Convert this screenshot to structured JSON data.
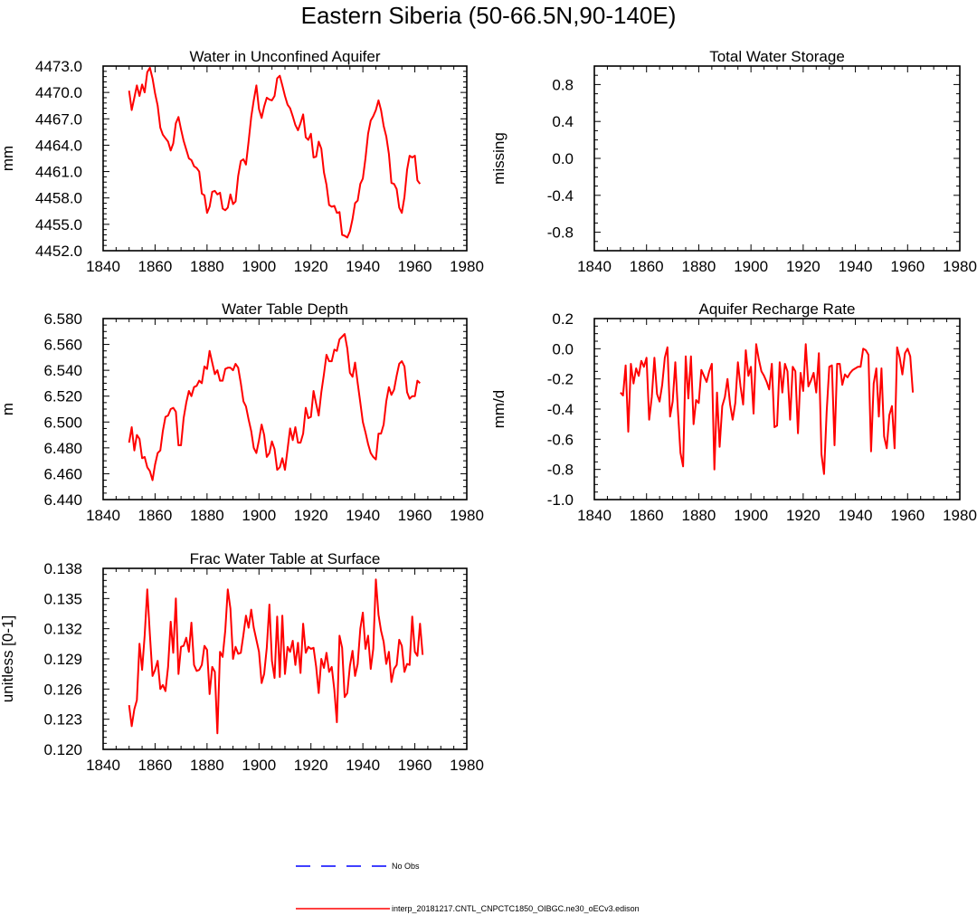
{
  "figure": {
    "title": "Eastern Siberia (50-66.5N,90-140E)",
    "legend": {
      "obs_label": "No Obs",
      "model_label": "interp_20181217.CNTL_CNPCTC1850_OIBGC.ne30_oECv3.edison",
      "obs_color": "#0000ff",
      "model_color": "#ff0000"
    }
  },
  "chart_data": [
    {
      "type": "line",
      "title": "Water in Unconfined Aquifer",
      "xlabel": "",
      "ylabel": "mm",
      "xlim": [
        1840,
        1980
      ],
      "ylim": [
        4452,
        4473
      ],
      "xticks": [
        1840,
        1860,
        1880,
        1900,
        1920,
        1940,
        1960,
        1980
      ],
      "xtick_labels": [
        "1840",
        "1860",
        "1880",
        "1900",
        "1920",
        "1940",
        "1960",
        "1980"
      ],
      "yticks": [
        4452,
        4455,
        4458,
        4461,
        4464,
        4467,
        4470,
        4473
      ],
      "ytick_labels": [
        "4452.0",
        "4455.0",
        "4458.0",
        "4461.0",
        "4464.0",
        "4467.0",
        "4470.0",
        "4473.0"
      ],
      "yminor": 5,
      "series": [
        {
          "name": "model",
          "color": "#ff0000",
          "x_start": 1850,
          "x_step": 1,
          "values": [
            4470.2,
            4468.0,
            4469.4,
            4470.8,
            4469.6,
            4470.9,
            4470.0,
            4472.3,
            4472.8,
            4471.6,
            4469.9,
            4468.5,
            4466.0,
            4465.2,
            4464.8,
            4464.4,
            4463.4,
            4464.2,
            4466.5,
            4467.2,
            4465.8,
            4464.5,
            4463.5,
            4462.5,
            4462.3,
            4461.6,
            4461.4,
            4461.0,
            4458.5,
            4458.3,
            4456.3,
            4457.0,
            4458.7,
            4458.8,
            4458.4,
            4458.6,
            4456.8,
            4456.6,
            4456.9,
            4458.4,
            4457.3,
            4457.6,
            4460.5,
            4462.2,
            4462.4,
            4461.8,
            4464.4,
            4467.2,
            4469.1,
            4470.8,
            4468.1,
            4467.1,
            4468.4,
            4469.4,
            4469.2,
            4469.1,
            4469.6,
            4471.6,
            4471.9,
            4470.8,
            4469.6,
            4468.6,
            4468.2,
            4467.3,
            4466.3,
            4465.7,
            4466.5,
            4467.5,
            4464.9,
            4464.6,
            4465.3,
            4462.6,
            4462.7,
            4464.4,
            4463.6,
            4460.9,
            4459.5,
            4457.2,
            4457.0,
            4457.1,
            4456.3,
            4456.4,
            4453.8,
            4453.7,
            4453.5,
            4454.2,
            4455.6,
            4457.4,
            4457.7,
            4459.6,
            4460.2,
            4462.5,
            4465.3,
            4466.8,
            4467.3,
            4468.0,
            4469.1,
            4468.0,
            4466.2,
            4465.0,
            4463.0,
            4459.7,
            4459.6,
            4459.0,
            4456.9,
            4456.3,
            4458.1,
            4461.2,
            4462.8,
            4462.6,
            4462.8,
            4460.0,
            4459.6
          ]
        }
      ]
    },
    {
      "type": "line",
      "title": "Total Water Storage",
      "xlabel": "",
      "ylabel": "missing",
      "xlim": [
        1840,
        1980
      ],
      "ylim": [
        -1.0,
        1.0
      ],
      "xticks": [
        1840,
        1860,
        1880,
        1900,
        1920,
        1940,
        1960,
        1980
      ],
      "xtick_labels": [
        "1840",
        "1860",
        "1880",
        "1900",
        "1920",
        "1940",
        "1960",
        "1980"
      ],
      "yticks": [
        -0.8,
        -0.4,
        0.0,
        0.4,
        0.8
      ],
      "ytick_labels": [
        "-0.8",
        "-0.4",
        "0.0",
        "0.4",
        "0.8"
      ],
      "yminor": 4,
      "series": []
    },
    {
      "type": "line",
      "title": "Water Table Depth",
      "xlabel": "",
      "ylabel": "m",
      "xlim": [
        1840,
        1980
      ],
      "ylim": [
        6.44,
        6.58
      ],
      "xticks": [
        1840,
        1860,
        1880,
        1900,
        1920,
        1940,
        1960,
        1980
      ],
      "xtick_labels": [
        "1840",
        "1860",
        "1880",
        "1900",
        "1920",
        "1940",
        "1960",
        "1980"
      ],
      "yticks": [
        6.44,
        6.46,
        6.48,
        6.5,
        6.52,
        6.54,
        6.56,
        6.58
      ],
      "ytick_labels": [
        "6.440",
        "6.460",
        "6.480",
        "6.500",
        "6.520",
        "6.540",
        "6.560",
        "6.580"
      ],
      "yminor": 4,
      "series": [
        {
          "name": "model",
          "color": "#ff0000",
          "x_start": 1850,
          "x_step": 1,
          "values": [
            6.484,
            6.496,
            6.478,
            6.49,
            6.487,
            6.472,
            6.473,
            6.465,
            6.462,
            6.455,
            6.467,
            6.476,
            6.478,
            6.493,
            6.504,
            6.505,
            6.51,
            6.511,
            6.508,
            6.482,
            6.482,
            6.503,
            6.515,
            6.524,
            6.52,
            6.527,
            6.528,
            6.532,
            6.53,
            6.543,
            6.541,
            6.555,
            6.546,
            6.537,
            6.54,
            6.532,
            6.532,
            6.541,
            6.542,
            6.542,
            6.54,
            6.545,
            6.542,
            6.53,
            6.516,
            6.512,
            6.502,
            6.493,
            6.48,
            6.476,
            6.486,
            6.498,
            6.49,
            6.473,
            6.476,
            6.485,
            6.479,
            6.463,
            6.465,
            6.472,
            6.463,
            6.479,
            6.495,
            6.486,
            6.496,
            6.484,
            6.484,
            6.491,
            6.511,
            6.503,
            6.504,
            6.524,
            6.514,
            6.505,
            6.523,
            6.537,
            6.552,
            6.547,
            6.547,
            6.556,
            6.555,
            6.564,
            6.566,
            6.568,
            6.557,
            6.538,
            6.535,
            6.546,
            6.53,
            6.515,
            6.5,
            6.492,
            6.483,
            6.476,
            6.473,
            6.471,
            6.491,
            6.491,
            6.498,
            6.516,
            6.527,
            6.521,
            6.525,
            6.536,
            6.545,
            6.547,
            6.543,
            6.523,
            6.518,
            6.52,
            6.52,
            6.532,
            6.53
          ]
        }
      ]
    },
    {
      "type": "line",
      "title": "Aquifer Recharge Rate",
      "xlabel": "",
      "ylabel": "mm/d",
      "xlim": [
        1840,
        1980
      ],
      "ylim": [
        -1.0,
        0.2
      ],
      "xticks": [
        1840,
        1860,
        1880,
        1900,
        1920,
        1940,
        1960,
        1980
      ],
      "xtick_labels": [
        "1840",
        "1860",
        "1880",
        "1900",
        "1920",
        "1940",
        "1960",
        "1980"
      ],
      "yticks": [
        -1.0,
        -0.8,
        -0.6,
        -0.4,
        -0.2,
        0.0,
        0.2
      ],
      "ytick_labels": [
        "-1.0",
        "-0.8",
        "-0.6",
        "-0.4",
        "-0.2",
        "0.0",
        "0.2"
      ],
      "yminor": 4,
      "series": [
        {
          "name": "model",
          "color": "#ff0000",
          "x_start": 1850,
          "x_step": 1,
          "values": [
            -0.29,
            -0.31,
            -0.11,
            -0.55,
            -0.1,
            -0.23,
            -0.13,
            -0.18,
            -0.08,
            -0.12,
            -0.06,
            -0.47,
            -0.32,
            -0.06,
            -0.3,
            -0.35,
            -0.24,
            -0.06,
            0.01,
            -0.45,
            -0.35,
            -0.09,
            -0.4,
            -0.69,
            -0.78,
            -0.05,
            -0.33,
            -0.05,
            -0.5,
            -0.34,
            -0.36,
            -0.14,
            -0.18,
            -0.22,
            -0.15,
            -0.1,
            -0.8,
            -0.29,
            -0.65,
            -0.38,
            -0.32,
            -0.2,
            -0.37,
            -0.47,
            -0.36,
            -0.09,
            -0.25,
            -0.37,
            -0.01,
            -0.18,
            -0.12,
            -0.43,
            0.03,
            -0.07,
            -0.15,
            -0.18,
            -0.22,
            -0.27,
            -0.1,
            -0.52,
            -0.51,
            -0.09,
            -0.29,
            -0.1,
            -0.15,
            -0.47,
            -0.12,
            -0.15,
            -0.56,
            -0.16,
            -0.28,
            0.03,
            -0.25,
            -0.21,
            -0.16,
            -0.29,
            -0.03,
            -0.7,
            -0.83,
            -0.42,
            -0.12,
            -0.11,
            -0.64,
            -0.1,
            -0.1,
            -0.24,
            -0.17,
            -0.19,
            -0.16,
            -0.14,
            -0.13,
            -0.12,
            -0.12,
            0.0,
            -0.01,
            -0.04,
            -0.68,
            -0.23,
            -0.13,
            -0.45,
            -0.13,
            -0.58,
            -0.66,
            -0.44,
            -0.38,
            -0.66,
            0.01,
            -0.06,
            -0.17,
            -0.03,
            0.0,
            -0.05,
            -0.29
          ]
        }
      ]
    },
    {
      "type": "line",
      "title": "Frac Water Table at Surface",
      "xlabel": "",
      "ylabel": "unitless [0-1]",
      "xlim": [
        1840,
        1980
      ],
      "ylim": [
        0.12,
        0.138
      ],
      "xticks": [
        1840,
        1860,
        1880,
        1900,
        1920,
        1940,
        1960,
        1980
      ],
      "xtick_labels": [
        "1840",
        "1860",
        "1880",
        "1900",
        "1920",
        "1940",
        "1960",
        "1980"
      ],
      "yticks": [
        0.12,
        0.123,
        0.126,
        0.129,
        0.132,
        0.135,
        0.138
      ],
      "ytick_labels": [
        "0.120",
        "0.123",
        "0.126",
        "0.129",
        "0.132",
        "0.135",
        "0.138"
      ],
      "yminor": 5,
      "series": [
        {
          "name": "model",
          "color": "#ff0000",
          "x_start": 1850,
          "x_step": 1,
          "values": [
            0.1244,
            0.1223,
            0.124,
            0.1249,
            0.1305,
            0.1279,
            0.1313,
            0.1359,
            0.1314,
            0.1273,
            0.1279,
            0.1288,
            0.126,
            0.1264,
            0.1258,
            0.1282,
            0.1327,
            0.1296,
            0.135,
            0.1275,
            0.1302,
            0.1303,
            0.1311,
            0.1297,
            0.1326,
            0.1284,
            0.1278,
            0.1279,
            0.1284,
            0.1303,
            0.1299,
            0.1255,
            0.1282,
            0.1277,
            0.1216,
            0.1297,
            0.1292,
            0.1318,
            0.1359,
            0.134,
            0.129,
            0.1302,
            0.1295,
            0.1296,
            0.1314,
            0.1333,
            0.1321,
            0.1339,
            0.1321,
            0.1309,
            0.1297,
            0.1266,
            0.1275,
            0.1301,
            0.1344,
            0.1288,
            0.1271,
            0.1332,
            0.1272,
            0.1333,
            0.1275,
            0.1302,
            0.1297,
            0.1308,
            0.1284,
            0.1306,
            0.1276,
            0.1325,
            0.1296,
            0.1302,
            0.13,
            0.1301,
            0.1282,
            0.1256,
            0.129,
            0.1281,
            0.1296,
            0.1277,
            0.1282,
            0.1259,
            0.1227,
            0.1313,
            0.1301,
            0.1252,
            0.1256,
            0.1283,
            0.1298,
            0.1273,
            0.1285,
            0.132,
            0.1336,
            0.13,
            0.1313,
            0.128,
            0.13,
            0.1369,
            0.1334,
            0.1318,
            0.1307,
            0.1285,
            0.1297,
            0.1267,
            0.128,
            0.1284,
            0.1309,
            0.1303,
            0.1277,
            0.1285,
            0.1284,
            0.1332,
            0.1297,
            0.1293,
            0.1325,
            0.1294
          ]
        }
      ]
    }
  ]
}
